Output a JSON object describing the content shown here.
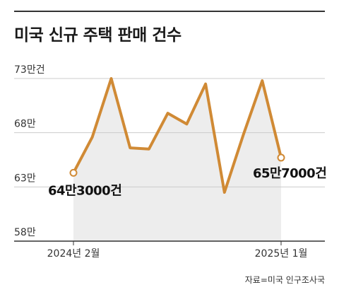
{
  "title": "미국 신규 주택 판매 건수",
  "source": "자료=미국 인구조사국",
  "chart_data": {
    "type": "area",
    "title": "미국 신규 주택 판매 건수",
    "xlabel": "",
    "ylabel": "",
    "ylim": [
      58,
      73
    ],
    "y_ticks": [
      73,
      68,
      63,
      58
    ],
    "y_tick_labels": [
      "73만건",
      "68만",
      "63만",
      "58만"
    ],
    "x_tick_labels": [
      {
        "index": 0,
        "label": "2024년 2월"
      },
      {
        "index": 11,
        "label": "2025년 1월"
      }
    ],
    "x": [
      "2024-02",
      "2024-03",
      "2024-04",
      "2024-05",
      "2024-06",
      "2024-07",
      "2024-08",
      "2024-09",
      "2024-10",
      "2024-11",
      "2024-12",
      "2025-01"
    ],
    "values": [
      64.3,
      67.6,
      73.0,
      66.6,
      66.5,
      69.8,
      68.8,
      72.5,
      62.5,
      67.8,
      72.8,
      65.7
    ],
    "annotations": [
      {
        "index": 0,
        "label": "64만3000건"
      },
      {
        "index": 11,
        "label": "65만7000건"
      }
    ],
    "grid": true,
    "legend": "none"
  },
  "colors": {
    "line": "#d08a35",
    "area": "#ededed",
    "grid": "#cccccc",
    "axis": "#333333"
  }
}
